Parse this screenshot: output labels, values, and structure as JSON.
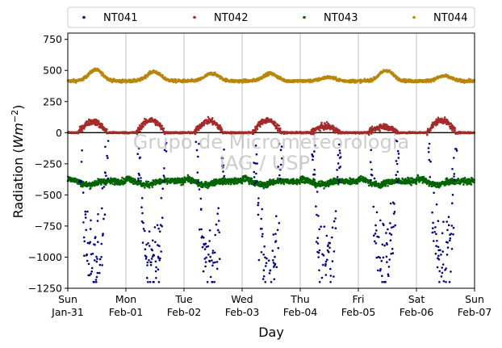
{
  "chart_data": {
    "type": "scatter",
    "title": "",
    "xlabel": "Day",
    "ylabel_prefix": "Radiation (",
    "ylabel_unit": "Wm",
    "ylabel_exp": "−2",
    "ylabel_suffix": ")",
    "ylim": [
      -1250,
      800
    ],
    "yticks": [
      -1250,
      -1000,
      -750,
      -500,
      -250,
      0,
      250,
      500,
      750
    ],
    "ytick_labels": [
      "−1250",
      "−1000",
      "−750",
      "−500",
      "−250",
      "0",
      "250",
      "500",
      "750"
    ],
    "xlim_days": [
      0,
      7
    ],
    "xticks": [
      {
        "day": "Sun",
        "date": "Jan-31"
      },
      {
        "day": "Mon",
        "date": "Feb-01"
      },
      {
        "day": "Tue",
        "date": "Feb-02"
      },
      {
        "day": "Wed",
        "date": "Feb-03"
      },
      {
        "day": "Thu",
        "date": "Feb-04"
      },
      {
        "day": "Fri",
        "date": "Feb-05"
      },
      {
        "day": "Sat",
        "date": "Feb-06"
      },
      {
        "day": "Sun",
        "date": "Feb-07"
      }
    ],
    "grid": "x",
    "legend_position": "top",
    "watermark_lines": [
      "Grupo de Micrometeorologia",
      "IAG / USP"
    ],
    "series": [
      {
        "name": "NT041",
        "color": "#00007f",
        "pattern": "night-sky",
        "baseline": -380,
        "amplitude_min": -1100,
        "noise": 170
      },
      {
        "name": "NT042",
        "color": "#a52a2a",
        "pattern": "humps",
        "baseline": 0,
        "peaks": [
          90,
          100,
          95,
          100,
          50,
          50,
          100
        ],
        "noise": 8
      },
      {
        "name": "NT043",
        "color": "#006400",
        "pattern": "band",
        "baseline": -390,
        "dip": -30,
        "noise": 12
      },
      {
        "name": "NT044",
        "color": "#b8860b",
        "pattern": "waves",
        "baseline": 415,
        "peaks": [
          505,
          490,
          475,
          475,
          445,
          500,
          455
        ],
        "noise": 6
      }
    ]
  }
}
